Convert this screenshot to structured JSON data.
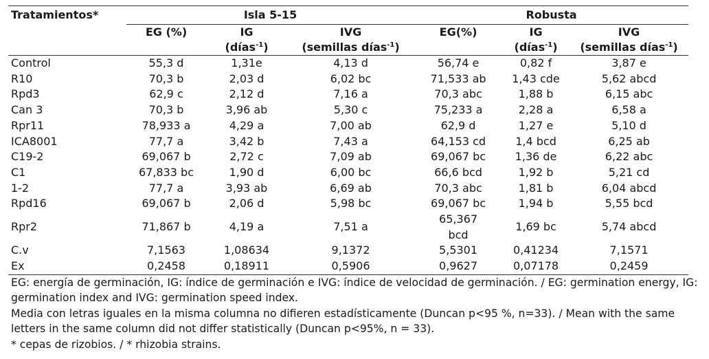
{
  "header": {
    "treatments_label": "Tratamientos*",
    "group1": "Isla 5-15",
    "group2": "Robusta",
    "eg1": "EG (%)",
    "ig_top": "IG",
    "ig_unit_prefix": "(días",
    "ivg_top": "IVG",
    "ivg_unit_prefix": "(semillas días",
    "unit_sup": "-1",
    "unit_close": ")",
    "eg2": "EG(%)"
  },
  "rows": [
    {
      "t": "Control",
      "eg1": "55,3 d",
      "ig1": "1,31e",
      "ivg1": "4,13 d",
      "eg2": "56,74 e",
      "eg2b": "",
      "ig2": "0,82 f",
      "ivg2": "3,87 e"
    },
    {
      "t": "R10",
      "eg1": "70,3 b",
      "ig1": "2,03 d",
      "ivg1": "6,02 bc",
      "eg2": "71,533 ab",
      "eg2b": "",
      "ig2": "1,43 cde",
      "ivg2": "5,62 abcd"
    },
    {
      "t": "Rpd3",
      "eg1": "62,9 c",
      "ig1": "2,12 d",
      "ivg1": "7,16 a",
      "eg2": "70,3 abc",
      "eg2b": "",
      "ig2": "1,88 b",
      "ivg2": "6,15 abc"
    },
    {
      "t": "Can 3",
      "eg1": "70,3 b",
      "ig1": "3,96 ab",
      "ivg1": "5,30 c",
      "eg2": "75,233 a",
      "eg2b": "",
      "ig2": "2,28 a",
      "ivg2": "6,58 a"
    },
    {
      "t": "Rpr11",
      "eg1": "78,933 a",
      "ig1": "4,29 a",
      "ivg1": "7,00 ab",
      "eg2": "62,9 d",
      "eg2b": "",
      "ig2": "1,27 e",
      "ivg2": "5,10 d"
    },
    {
      "t": "ICA8001",
      "eg1": "77,7 a",
      "ig1": "3,42 b",
      "ivg1": "7,43 a",
      "eg2": "64,153 cd",
      "eg2b": "",
      "ig2": "1,4 bcd",
      "ivg2": "6,25 ab"
    },
    {
      "t": "C19-2",
      "eg1": "69,067 b",
      "ig1": "2,72 c",
      "ivg1": "7,09 ab",
      "eg2": "69,067 bc",
      "eg2b": "",
      "ig2": "1,36 de",
      "ivg2": "6,22 abc"
    },
    {
      "t": "C1",
      "eg1": "67,833 bc",
      "ig1": "1,90 d",
      "ivg1": "6,00 bc",
      "eg2": "66,6 bcd",
      "eg2b": "",
      "ig2": "1,92 b",
      "ivg2": "5,21 cd"
    },
    {
      "t": "1-2",
      "eg1": "77,7 a",
      "ig1": "3,93 ab",
      "ivg1": "6,69 ab",
      "eg2": "70,3 abc",
      "eg2b": "",
      "ig2": "1,81 b",
      "ivg2": "6,04 abcd"
    },
    {
      "t": "Rpd16",
      "eg1": "69,067 b",
      "ig1": "2,06 d",
      "ivg1": "5,98 bc",
      "eg2": "69,067 bc",
      "eg2b": "",
      "ig2": "1,94 b",
      "ivg2": "5,55 bcd"
    },
    {
      "t": "Rpr2",
      "eg1": "71,867 b",
      "ig1": "4,19 a",
      "ivg1": "7,51 a",
      "eg2": "65,367",
      "eg2b": "bcd",
      "ig2": "1,69 bc",
      "ivg2": "5,74 abcd"
    },
    {
      "t": "C.v",
      "eg1": "7,1563",
      "ig1": "1,08634",
      "ivg1": "9,1372",
      "eg2": "5,5301",
      "eg2b": "",
      "ig2": "0,41234",
      "ivg2": "7,1571"
    },
    {
      "t": "Ex",
      "eg1": "0,2458",
      "ig1": "0,18911",
      "ivg1": "0,5906",
      "eg2": "0,9627",
      "eg2b": "",
      "ig2": "0,07178",
      "ivg2": "0,2459"
    }
  ],
  "notes": [
    "EG: energía de germinación, IG: índice de germinación e IVG: índice de velocidad de germinación. / EG: germination energy, IG: germination index and IVG: germination speed index.",
    "Media con letras iguales en la misma columna no difieren estadísticamente (Duncan p<95 %, n=33). / Mean with the same letters in the same column did not differ statistically (Duncan p<95%, n = 33).",
    "* cepas de rizobios. / * rhizobia strains."
  ]
}
